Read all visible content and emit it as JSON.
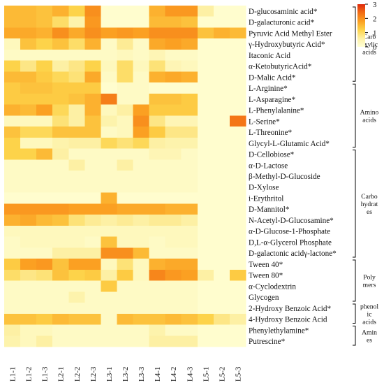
{
  "chart_data": {
    "type": "heatmap",
    "title": "",
    "xlabel": "",
    "ylabel": "",
    "columns": [
      "L1-1",
      "L1-2",
      "L1-3",
      "L2-1",
      "L2-2",
      "L2-3",
      "L3-1",
      "L3-2",
      "L3-3",
      "L4-1",
      "L4-2",
      "L4-3",
      "L5-1",
      "L5-2",
      "L5-3"
    ],
    "rows": [
      "D-glucosaminic acid*",
      "D-galacturonic acid*",
      "Pyruvic Acid Methyl Ester",
      "γ-Hydroxybutyric Acid*",
      "Itaconic Acid",
      "α-KetobutyricAcid*",
      "D-Malic Acid*",
      "L-Arginine*",
      "L-Asparagine*",
      "L-Phenylalanine*",
      "L-Serine*",
      "L-Threonine*",
      "Glycyl-L-Glutamic Acid*",
      "D-Cellobiose*",
      "α-D-Lactose",
      "β-Methyl-D-Glucoside",
      "D-Xylose",
      "i-Erythritol",
      "D-Mannitol*",
      "N-Acetyl-D-Glucosamine*",
      "α-D-Glucose-1-Phosphate",
      "D,L-α-Glycerol Phosphate",
      "D-galactonic acidγ-lactone*",
      "Tween 40*",
      "Tween 80*",
      "α-Cyclodextrin",
      "Glycogen",
      "2-Hydroxy Benzoic Acid*",
      "4-Hydroxy Benzoic Acid",
      "Phenylethylamine*",
      "Putrescine*"
    ],
    "values": [
      [
        1.5,
        1.5,
        1.4,
        1.6,
        1.2,
        2.0,
        0.1,
        0.1,
        0.1,
        1.6,
        1.9,
        1.9,
        0.6,
        0.1,
        0.1
      ],
      [
        1.5,
        1.5,
        1.4,
        1.0,
        0.5,
        1.9,
        0.1,
        0.1,
        0.1,
        1.5,
        1.5,
        1.4,
        0.1,
        0.1,
        0.1
      ],
      [
        1.7,
        1.7,
        1.6,
        2.0,
        1.7,
        2.0,
        1.8,
        1.9,
        1.8,
        2.0,
        2.0,
        2.0,
        1.4,
        1.6,
        1.5
      ],
      [
        0.3,
        1.4,
        1.2,
        1.4,
        1.0,
        1.6,
        0.2,
        0.7,
        0.2,
        1.7,
        1.8,
        1.7,
        0.1,
        0.1,
        0.1
      ],
      [
        0.2,
        0.2,
        0.2,
        0.2,
        0.2,
        0.2,
        0.2,
        0.3,
        0.2,
        0.4,
        0.2,
        0.2,
        0.1,
        0.1,
        0.1
      ],
      [
        1.2,
        0.8,
        1.2,
        0.6,
        0.8,
        1.2,
        0.3,
        1.0,
        0.3,
        0.9,
        0.4,
        0.3,
        0.1,
        0.1,
        0.1
      ],
      [
        1.5,
        1.5,
        1.3,
        1.1,
        0.9,
        1.7,
        0.2,
        1.0,
        0.2,
        1.6,
        1.7,
        1.6,
        0.1,
        0.1,
        0.1
      ],
      [
        1.3,
        1.4,
        1.4,
        1.3,
        1.3,
        1.3,
        0.1,
        0.2,
        0.2,
        0.1,
        0.1,
        0.1,
        0.1,
        0.1,
        0.1
      ],
      [
        1.3,
        1.3,
        1.3,
        1.3,
        1.4,
        1.6,
        2.2,
        0.2,
        0.2,
        1.4,
        1.4,
        1.3,
        0.1,
        0.1,
        0.1
      ],
      [
        1.6,
        1.5,
        1.8,
        1.1,
        0.6,
        1.6,
        0.3,
        0.6,
        1.8,
        1.3,
        1.3,
        1.3,
        0.1,
        0.1,
        0.1
      ],
      [
        0.3,
        0.3,
        0.3,
        0.9,
        0.6,
        1.4,
        0.5,
        0.3,
        2.0,
        0.8,
        0.4,
        0.4,
        0.1,
        0.1,
        2.3
      ],
      [
        1.4,
        1.1,
        1.1,
        1.4,
        1.4,
        1.4,
        0.2,
        0.3,
        1.8,
        1.3,
        0.8,
        0.8,
        0.1,
        0.1,
        0.1
      ],
      [
        1.2,
        0.3,
        0.3,
        0.5,
        0.6,
        0.6,
        1.1,
        0.9,
        1.1,
        0.6,
        0.5,
        0.5,
        0.1,
        0.1,
        0.1
      ],
      [
        1.2,
        1.2,
        1.5,
        0.6,
        0.2,
        0.2,
        0.2,
        0.2,
        0.2,
        0.4,
        0.4,
        0.2,
        0.1,
        0.1,
        0.1
      ],
      [
        0.2,
        0.2,
        0.2,
        0.2,
        0.6,
        0.2,
        0.2,
        0.6,
        0.2,
        0.2,
        0.2,
        0.2,
        0.1,
        0.1,
        0.1
      ],
      [
        0.2,
        0.2,
        0.2,
        0.2,
        0.2,
        0.2,
        0.2,
        0.2,
        0.2,
        0.2,
        0.2,
        0.2,
        0.1,
        0.1,
        0.1
      ],
      [
        0.2,
        0.2,
        0.2,
        0.2,
        0.2,
        0.2,
        0.2,
        0.2,
        0.2,
        0.2,
        0.2,
        0.2,
        0.1,
        0.1,
        0.1
      ],
      [
        0.1,
        0.1,
        0.1,
        0.1,
        0.1,
        0.1,
        1.6,
        0.1,
        0.1,
        0.1,
        0.1,
        0.1,
        0.1,
        0.1,
        0.1
      ],
      [
        1.9,
        1.9,
        1.9,
        1.9,
        1.8,
        1.8,
        1.8,
        1.7,
        1.7,
        1.7,
        1.6,
        1.6,
        0.1,
        0.1,
        0.1
      ],
      [
        1.6,
        1.7,
        1.5,
        1.4,
        0.9,
        0.7,
        0.6,
        0.7,
        0.6,
        0.7,
        0.7,
        0.6,
        0.1,
        0.1,
        0.1
      ],
      [
        0.3,
        0.3,
        0.3,
        0.3,
        0.3,
        0.3,
        0.3,
        0.3,
        0.3,
        0.3,
        0.3,
        0.3,
        0.1,
        0.1,
        0.1
      ],
      [
        0.2,
        0.3,
        0.3,
        0.3,
        0.3,
        0.2,
        1.4,
        0.3,
        0.3,
        0.2,
        0.3,
        0.3,
        0.1,
        0.1,
        0.1
      ],
      [
        0.2,
        0.2,
        0.2,
        0.6,
        0.6,
        0.6,
        2.0,
        2.0,
        1.5,
        0.2,
        0.2,
        0.2,
        0.1,
        0.1,
        0.1
      ],
      [
        1.3,
        1.8,
        1.9,
        1.4,
        1.8,
        1.8,
        0.3,
        0.9,
        0.3,
        1.6,
        1.7,
        1.7,
        0.1,
        0.1,
        0.1
      ],
      [
        1.0,
        0.8,
        0.9,
        1.4,
        1.2,
        1.3,
        0.6,
        1.3,
        0.3,
        2.1,
        1.9,
        1.8,
        0.6,
        0.1,
        1.3
      ],
      [
        0.2,
        0.2,
        0.2,
        0.2,
        0.2,
        0.2,
        1.3,
        0.2,
        0.2,
        0.2,
        0.2,
        0.2,
        0.1,
        0.1,
        0.1
      ],
      [
        0.2,
        0.2,
        0.2,
        0.2,
        0.5,
        0.2,
        0.2,
        0.2,
        0.2,
        0.2,
        0.2,
        0.2,
        0.1,
        0.1,
        0.1
      ],
      [
        0.2,
        0.2,
        0.2,
        0.2,
        0.2,
        0.2,
        0.2,
        0.2,
        0.2,
        0.2,
        0.2,
        0.2,
        0.1,
        0.1,
        0.1
      ],
      [
        1.4,
        1.4,
        1.3,
        1.5,
        1.4,
        1.4,
        0.2,
        1.5,
        1.4,
        1.4,
        1.5,
        1.4,
        1.2,
        0.8,
        0.6
      ],
      [
        0.6,
        0.3,
        0.3,
        0.2,
        0.2,
        0.2,
        0.2,
        0.2,
        0.2,
        0.5,
        0.2,
        0.2,
        0.1,
        0.1,
        0.1
      ],
      [
        0.5,
        0.3,
        0.6,
        0.2,
        0.2,
        0.2,
        0.2,
        0.2,
        0.2,
        0.6,
        0.6,
        0.6,
        0.1,
        0.1,
        0.1
      ]
    ],
    "groups": [
      {
        "lines": [
          "Carb",
          "oxylic",
          "acids"
        ],
        "start": 0,
        "end": 6
      },
      {
        "lines": [
          "Amino",
          "acids"
        ],
        "start": 7,
        "end": 12
      },
      {
        "lines": [
          "Carbo",
          "hydrat",
          "es"
        ],
        "start": 13,
        "end": 22
      },
      {
        "lines": [
          "Poly",
          "mers"
        ],
        "start": 23,
        "end": 26
      },
      {
        "lines": [
          "phenol",
          "ic",
          "acids"
        ],
        "start": 27,
        "end": 28
      },
      {
        "lines": [
          "Amin",
          "es"
        ],
        "start": 29,
        "end": 30
      }
    ],
    "colorbar": {
      "ticks": [
        "3",
        "2",
        "1",
        "0"
      ],
      "range": [
        0,
        3
      ],
      "colors": [
        "#ffffd6",
        "#fdf0a4",
        "#fdd34a",
        "#fba022",
        "#f26d14",
        "#df2a0d"
      ]
    }
  }
}
